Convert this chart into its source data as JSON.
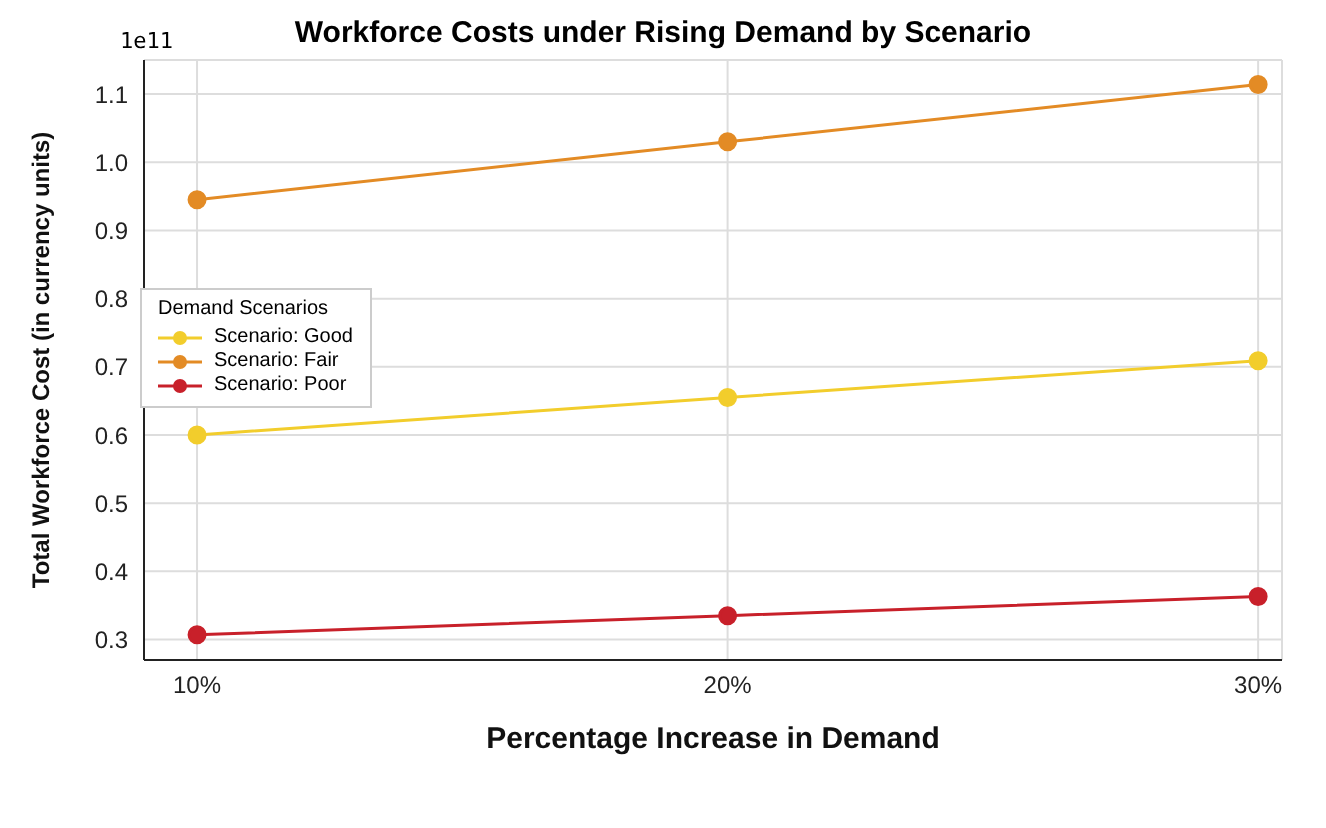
{
  "chart_data": {
    "type": "line",
    "title": "Workforce Costs under Rising Demand by Scenario",
    "xlabel": "Percentage Increase in Demand",
    "ylabel": "Total Workforce Cost (in currency units)",
    "legend_title": "Demand Scenarios",
    "annotations": [
      "1e11"
    ],
    "x": [
      10,
      20,
      30
    ],
    "series": [
      {
        "name": "Scenario: Good",
        "color": "#f2cd2c",
        "values": [
          0.6,
          0.655,
          0.709
        ]
      },
      {
        "name": "Scenario: Fair",
        "color": "#e38b25",
        "values": [
          0.945,
          1.03,
          1.114
        ]
      },
      {
        "name": "Scenario: Poor",
        "color": "#c8202a",
        "values": [
          0.307,
          0.335,
          0.363
        ]
      }
    ],
    "xlim": [
      9.0,
      30.45
    ],
    "xticks": [
      {
        "value": 10,
        "label": "10%"
      },
      {
        "value": 20,
        "label": "20%"
      },
      {
        "value": 30,
        "label": "30%"
      }
    ],
    "ylim": [
      0.27,
      1.15
    ],
    "yticks": [
      0.3,
      0.4,
      0.5,
      0.6,
      0.7,
      0.8,
      0.9,
      {
        "value": 1.0,
        "label": "1.0"
      },
      1.1
    ],
    "grid": true,
    "legend": "left",
    "marker": "circle",
    "line_style": "solid"
  }
}
